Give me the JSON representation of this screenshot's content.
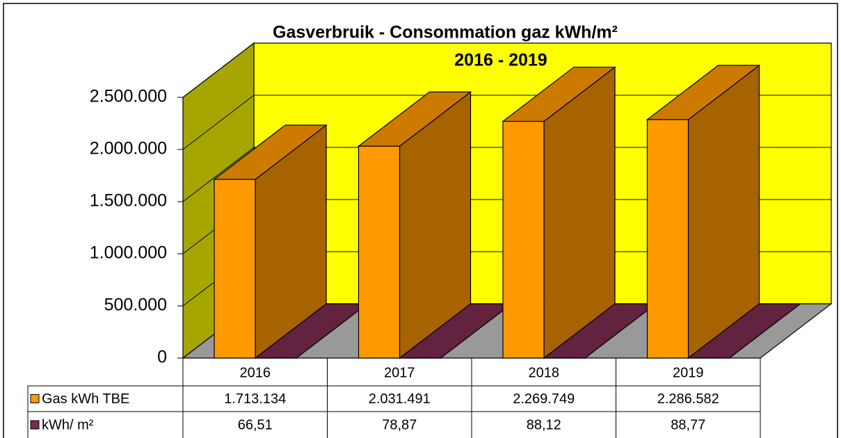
{
  "chart_data": {
    "type": "bar3d",
    "title": "Gasverbruik - Consommation gaz kWh/m²",
    "subtitle": "2016 - 2019",
    "categories": [
      "2016",
      "2017",
      "2018",
      "2019"
    ],
    "series": [
      {
        "name": "Gas kWh TBE",
        "color": "#ff9900",
        "values": [
          1713134,
          2031491,
          2269749,
          2286582
        ],
        "value_labels": [
          "1.713.134",
          "2.031.491",
          "2.269.749",
          "2.286.582"
        ]
      },
      {
        "name": "kWh/ m²",
        "color": "#7a2a50",
        "values": [
          66.51,
          78.87,
          88.12,
          88.77
        ],
        "value_labels": [
          "66,51",
          "78,87",
          "88,12",
          "88,77"
        ]
      }
    ],
    "ylim": [
      0,
      2500000
    ],
    "yticks": [
      0,
      {
        "value": 500000,
        "label": "500.000"
      },
      {
        "value": 1000000,
        "label": "1.000.000"
      },
      {
        "value": 1500000,
        "label": "1.500.000"
      },
      {
        "value": 2000000,
        "label": "2.000.000"
      },
      {
        "value": 2500000,
        "label": "2.500.000"
      }
    ],
    "grid": true
  }
}
